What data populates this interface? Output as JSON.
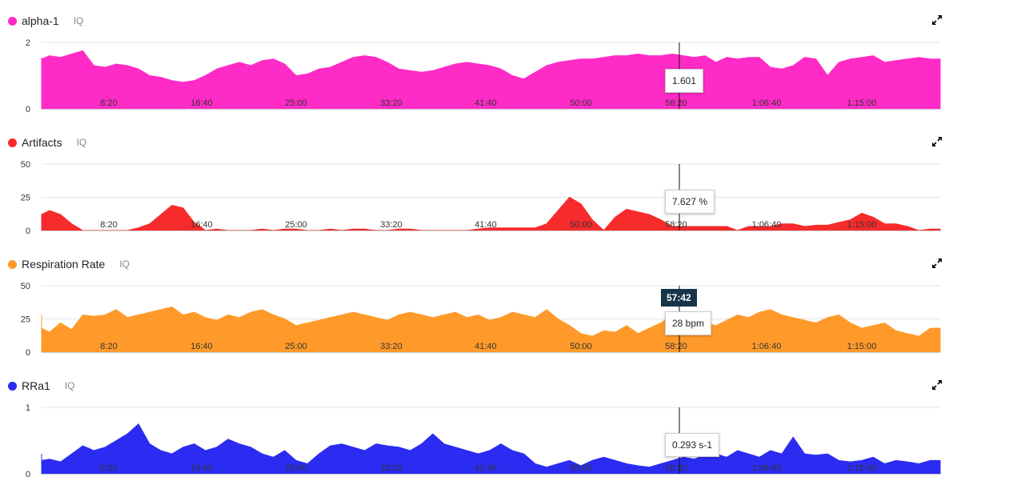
{
  "x_ticks": [
    "8:20",
    "16:40",
    "25:00",
    "33:20",
    "41:40",
    "50:00",
    "58:20",
    "1:06:40",
    "1:15:00"
  ],
  "chart_data": [
    {
      "type": "area",
      "title": "alpha-1",
      "iq_label": "IQ",
      "color": "#ff2bc6",
      "y_ticks": [
        "2",
        "0"
      ],
      "ylim": [
        0,
        2
      ],
      "tooltip": "1.601",
      "x_minutes": [
        0,
        1,
        2,
        3,
        4,
        5,
        6,
        7,
        8,
        9,
        10,
        11,
        12,
        13,
        14,
        15,
        16,
        17,
        18,
        19,
        20,
        21,
        22,
        23,
        24,
        25,
        26,
        27,
        28,
        29,
        30,
        31,
        32,
        33,
        34,
        35,
        36,
        37,
        38,
        39,
        40,
        41,
        42,
        43,
        44,
        45,
        46,
        47,
        48,
        49,
        50,
        51,
        52,
        53,
        54,
        55,
        56,
        57,
        58,
        59,
        60,
        61,
        62,
        63,
        64,
        65,
        66,
        67,
        68,
        69,
        70,
        71,
        72,
        73,
        74,
        75,
        76,
        77,
        78,
        79,
        80,
        81
      ],
      "values": [
        1.5,
        1.55,
        1.5,
        1.6,
        1.55,
        1.65,
        1.75,
        1.3,
        1.25,
        1.35,
        1.3,
        1.2,
        1.0,
        0.95,
        0.85,
        0.8,
        0.85,
        1.0,
        1.2,
        1.3,
        1.4,
        1.3,
        1.45,
        1.5,
        1.35,
        1.0,
        1.05,
        1.2,
        1.25,
        1.4,
        1.55,
        1.6,
        1.55,
        1.4,
        1.2,
        1.15,
        1.1,
        1.15,
        1.25,
        1.35,
        1.4,
        1.35,
        1.3,
        1.2,
        1.0,
        0.9,
        1.1,
        1.3,
        1.4,
        1.45,
        1.5,
        1.5,
        1.55,
        1.6,
        1.6,
        1.65,
        1.6,
        1.6,
        1.65,
        1.6,
        1.55,
        1.6,
        1.4,
        1.55,
        1.5,
        1.55,
        1.55,
        1.25,
        1.2,
        1.3,
        1.55,
        1.5,
        1.0,
        1.4,
        1.5,
        1.55,
        1.6,
        1.4,
        1.45,
        1.5,
        1.55,
        1.5
      ]
    },
    {
      "type": "area",
      "title": "Artifacts",
      "iq_label": "IQ",
      "color": "#f72b2b",
      "y_ticks": [
        "50",
        "25",
        "0"
      ],
      "ylim": [
        0,
        50
      ],
      "tooltip": "7.627 %",
      "x_minutes": [
        0,
        1,
        2,
        3,
        4,
        5,
        6,
        7,
        8,
        9,
        10,
        11,
        12,
        13,
        14,
        15,
        16,
        17,
        18,
        19,
        20,
        21,
        22,
        23,
        24,
        25,
        26,
        27,
        28,
        29,
        30,
        31,
        32,
        33,
        34,
        35,
        36,
        37,
        38,
        39,
        40,
        41,
        42,
        43,
        44,
        45,
        46,
        47,
        48,
        49,
        50,
        51,
        52,
        53,
        54,
        55,
        56,
        57,
        58,
        59,
        60,
        61,
        62,
        63,
        64,
        65,
        66,
        67,
        68,
        69,
        70,
        71,
        72,
        73,
        74,
        75,
        76,
        77,
        78,
        79,
        80,
        81
      ],
      "values": [
        2,
        4,
        12,
        15,
        12,
        5,
        0,
        0,
        0,
        0,
        0,
        2,
        5,
        12,
        19,
        17,
        6,
        0,
        1,
        0,
        0,
        0,
        1,
        0,
        1,
        1,
        0,
        0,
        1,
        0,
        1,
        1,
        0,
        0,
        1,
        1,
        0,
        0,
        0,
        0,
        0,
        1,
        2,
        2,
        2,
        2,
        2,
        5,
        15,
        25,
        20,
        8,
        0,
        10,
        16,
        14,
        12,
        8,
        3,
        3,
        3,
        3,
        3,
        3,
        0,
        3,
        3,
        3,
        5,
        5,
        3,
        4,
        4,
        6,
        8,
        13,
        10,
        5,
        5,
        3,
        0,
        1
      ]
    },
    {
      "type": "area",
      "title": "Respiration Rate",
      "iq_label": "IQ",
      "color": "#ff9a2a",
      "y_ticks": [
        "50",
        "25",
        "0"
      ],
      "ylim": [
        0,
        50
      ],
      "tooltip": "28 bpm",
      "time_badge": "57:42",
      "x_minutes": [
        0,
        1,
        2,
        3,
        4,
        5,
        6,
        7,
        8,
        9,
        10,
        11,
        12,
        13,
        14,
        15,
        16,
        17,
        18,
        19,
        20,
        21,
        22,
        23,
        24,
        25,
        26,
        27,
        28,
        29,
        30,
        31,
        32,
        33,
        34,
        35,
        36,
        37,
        38,
        39,
        40,
        41,
        42,
        43,
        44,
        45,
        46,
        47,
        48,
        49,
        50,
        51,
        52,
        53,
        54,
        55,
        56,
        57,
        58,
        59,
        60,
        61,
        62,
        63,
        64,
        65,
        66,
        67,
        68,
        69,
        70,
        71,
        72,
        73,
        74,
        75,
        76,
        77,
        78,
        79,
        80,
        81
      ],
      "values": [
        28,
        20,
        18,
        15,
        22,
        17,
        28,
        27,
        28,
        32,
        26,
        28,
        30,
        32,
        34,
        28,
        30,
        26,
        24,
        28,
        26,
        30,
        32,
        28,
        25,
        20,
        22,
        24,
        26,
        28,
        30,
        28,
        26,
        24,
        28,
        30,
        28,
        26,
        28,
        30,
        26,
        28,
        24,
        26,
        30,
        28,
        26,
        32,
        25,
        20,
        14,
        12,
        16,
        15,
        20,
        14,
        18,
        22,
        28,
        30,
        24,
        22,
        20,
        24,
        28,
        26,
        30,
        32,
        28,
        26,
        24,
        22,
        26,
        28,
        22,
        18,
        20,
        22,
        16,
        14,
        12,
        18
      ]
    },
    {
      "type": "area",
      "title": "RRa1",
      "iq_label": "IQ",
      "color": "#2b2bf2",
      "y_ticks": [
        "1",
        "0"
      ],
      "ylim": [
        0,
        1
      ],
      "tooltip": "0.293 s-1",
      "x_minutes": [
        0,
        1,
        2,
        3,
        4,
        5,
        6,
        7,
        8,
        9,
        10,
        11,
        12,
        13,
        14,
        15,
        16,
        17,
        18,
        19,
        20,
        21,
        22,
        23,
        24,
        25,
        26,
        27,
        28,
        29,
        30,
        31,
        32,
        33,
        34,
        35,
        36,
        37,
        38,
        39,
        40,
        41,
        42,
        43,
        44,
        45,
        46,
        47,
        48,
        49,
        50,
        51,
        52,
        53,
        54,
        55,
        56,
        57,
        58,
        59,
        60,
        61,
        62,
        63,
        64,
        65,
        66,
        67,
        68,
        69,
        70,
        71,
        72,
        73,
        74,
        75,
        76,
        77,
        78,
        79,
        80,
        81
      ],
      "values": [
        0.3,
        0.25,
        0.2,
        0.22,
        0.18,
        0.3,
        0.42,
        0.35,
        0.4,
        0.5,
        0.6,
        0.75,
        0.45,
        0.35,
        0.3,
        0.4,
        0.45,
        0.35,
        0.4,
        0.52,
        0.45,
        0.4,
        0.3,
        0.25,
        0.35,
        0.2,
        0.15,
        0.3,
        0.42,
        0.45,
        0.4,
        0.35,
        0.45,
        0.42,
        0.4,
        0.35,
        0.45,
        0.6,
        0.45,
        0.4,
        0.35,
        0.3,
        0.35,
        0.45,
        0.35,
        0.3,
        0.15,
        0.1,
        0.15,
        0.2,
        0.12,
        0.2,
        0.25,
        0.2,
        0.15,
        0.12,
        0.1,
        0.15,
        0.2,
        0.25,
        0.22,
        0.28,
        0.3,
        0.25,
        0.35,
        0.3,
        0.25,
        0.35,
        0.3,
        0.55,
        0.3,
        0.28,
        0.3,
        0.2,
        0.18,
        0.2,
        0.25,
        0.15,
        0.2,
        0.18,
        0.15,
        0.2
      ]
    }
  ]
}
